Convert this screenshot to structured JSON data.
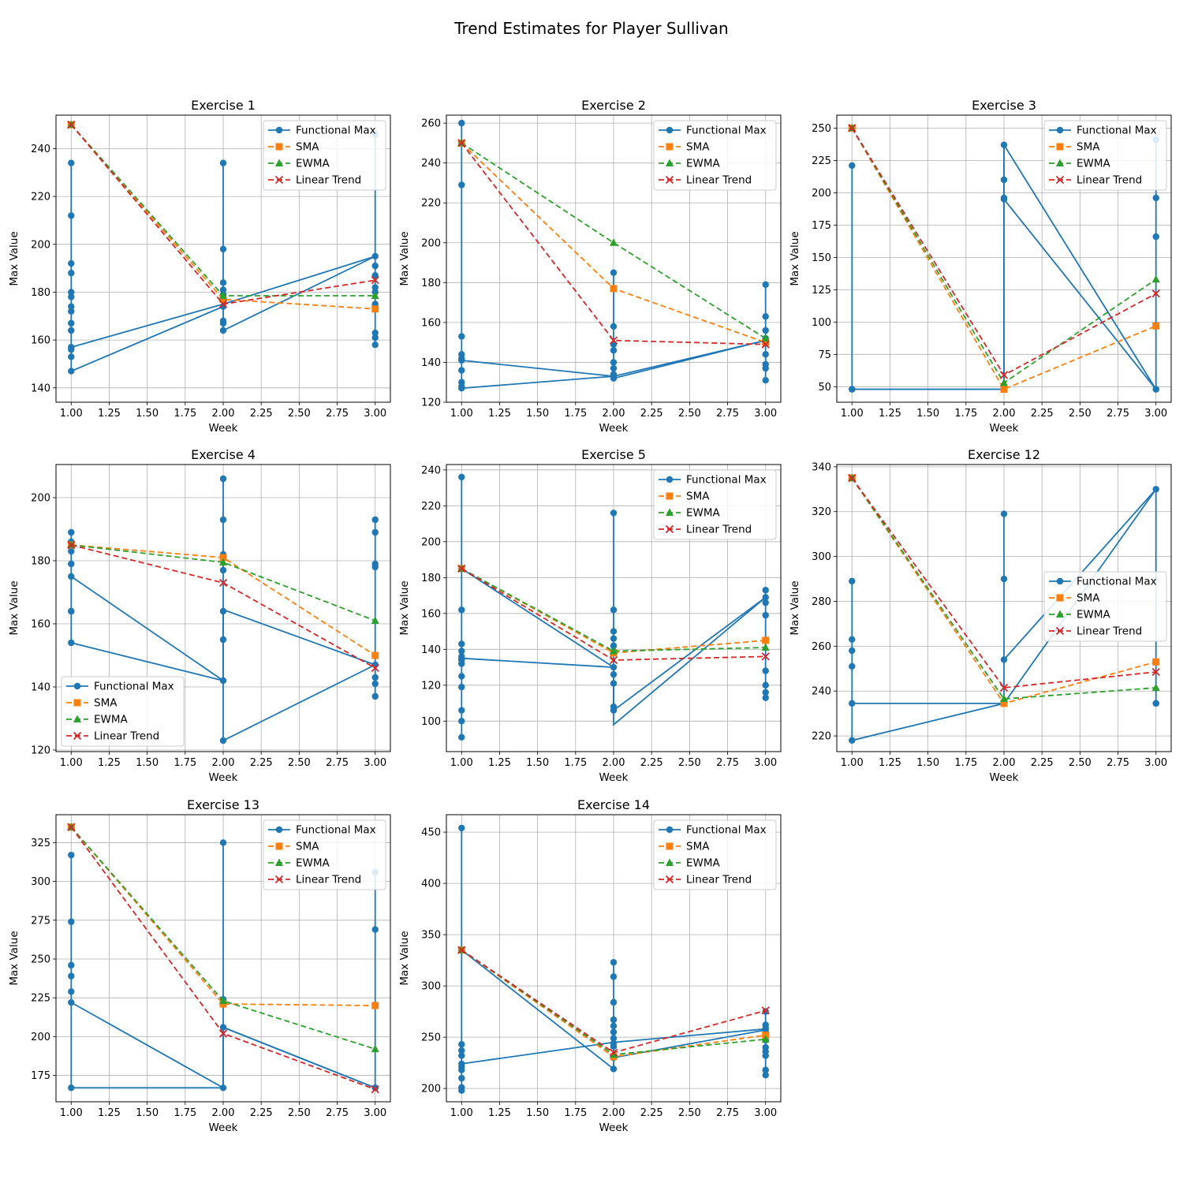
{
  "figure_title": "Trend Estimates for Player Sullivan",
  "colors": {
    "functional": "#1f77b4",
    "sma": "#ff7f0e",
    "ewma": "#2ca02c",
    "linear": "#d62728"
  },
  "legend_labels": [
    "Functional Max",
    "SMA",
    "EWMA",
    "Linear Trend"
  ],
  "chart_data": [
    {
      "type": "line",
      "title": "Exercise 1",
      "xlabel": "Week",
      "ylabel": "Max Value",
      "xlim": [
        0.9,
        3.1
      ],
      "ylim": [
        134,
        254
      ],
      "yticks": [
        140,
        160,
        180,
        200,
        220,
        240
      ],
      "grid": true,
      "legend": "top-right",
      "functional_max": {
        "x": [
          1,
          1,
          1,
          1,
          1,
          1,
          1,
          1,
          1,
          1,
          1,
          1,
          1,
          1,
          2,
          2,
          2,
          2,
          2,
          2,
          2,
          2,
          2,
          3,
          3,
          3,
          3,
          3,
          3,
          3,
          3,
          3,
          3
        ],
        "y": [
          157,
          234,
          212,
          192,
          188,
          180,
          178,
          174,
          172,
          167,
          164,
          156,
          153,
          147,
          174,
          234,
          198,
          184,
          181,
          179,
          168,
          167,
          164,
          195,
          246,
          191,
          187,
          182,
          180,
          175,
          163,
          161,
          158
        ],
        "trend": {
          "x": [
            1,
            2,
            3
          ],
          "y": [
            157,
            175,
            195
          ]
        }
      },
      "series": [
        {
          "name": "SMA",
          "x": [
            1,
            2,
            3
          ],
          "values": [
            250,
            177,
            173
          ]
        },
        {
          "name": "EWMA",
          "x": [
            1,
            2,
            3
          ],
          "values": [
            250,
            178.5,
            178.5
          ]
        },
        {
          "name": "Linear Trend",
          "x": [
            1,
            2,
            3
          ],
          "values": [
            250,
            175,
            185
          ]
        }
      ]
    },
    {
      "type": "line",
      "title": "Exercise 2",
      "xlabel": "Week",
      "ylabel": "Max Value",
      "xlim": [
        0.9,
        3.1
      ],
      "ylim": [
        120,
        264
      ],
      "yticks": [
        120,
        140,
        160,
        180,
        200,
        220,
        240,
        260
      ],
      "grid": true,
      "legend": "top-right",
      "functional_max": {
        "x": [
          1,
          1,
          1,
          1,
          1,
          1,
          1,
          1,
          1,
          1,
          1,
          2,
          2,
          2,
          2,
          2,
          2,
          2,
          2,
          2,
          3,
          3,
          3,
          3,
          3,
          3,
          3,
          3,
          3
        ],
        "y": [
          141,
          260,
          250,
          229,
          153,
          144,
          142,
          136,
          130,
          128,
          127,
          133,
          185,
          158,
          149,
          146,
          140,
          137,
          134,
          132,
          151,
          179,
          163,
          156,
          152,
          144,
          139,
          137,
          131
        ],
        "trend": {
          "x": [
            1,
            2,
            3
          ],
          "y": [
            141,
            133,
            151
          ]
        }
      },
      "series": [
        {
          "name": "SMA",
          "x": [
            1,
            2,
            3
          ],
          "values": [
            250,
            177,
            150
          ]
        },
        {
          "name": "EWMA",
          "x": [
            1,
            2,
            3
          ],
          "values": [
            250,
            200,
            152
          ]
        },
        {
          "name": "Linear Trend",
          "x": [
            1,
            2,
            3
          ],
          "values": [
            250,
            151,
            149
          ]
        }
      ]
    },
    {
      "type": "line",
      "title": "Exercise 3",
      "xlabel": "Week",
      "ylabel": "Max Value",
      "xlim": [
        0.9,
        3.1
      ],
      "ylim": [
        38,
        260
      ],
      "yticks": [
        50,
        75,
        100,
        125,
        150,
        175,
        200,
        225,
        250
      ],
      "grid": true,
      "legend": "top-right",
      "functional_max": {
        "x": [
          1,
          1,
          1,
          2,
          2,
          2,
          2,
          2,
          3,
          3,
          3,
          3,
          3
        ],
        "y": [
          48,
          221,
          48,
          48,
          237,
          210,
          196,
          195,
          48,
          241,
          196,
          166,
          48
        ],
        "trend": {
          "x": [
            1,
            2,
            2,
            3
          ],
          "y": [
            48,
            48,
            237,
            48
          ]
        }
      },
      "series": [
        {
          "name": "SMA",
          "x": [
            1,
            2,
            3
          ],
          "values": [
            250,
            48,
            97
          ]
        },
        {
          "name": "EWMA",
          "x": [
            1,
            2,
            3
          ],
          "values": [
            250,
            53,
            133
          ]
        },
        {
          "name": "Linear Trend",
          "x": [
            1,
            2,
            3
          ],
          "values": [
            250,
            59,
            122
          ]
        }
      ]
    },
    {
      "type": "line",
      "title": "Exercise 4",
      "xlabel": "Week",
      "ylabel": "Max Value",
      "xlim": [
        0.9,
        3.1
      ],
      "ylim": [
        119.5,
        210.5
      ],
      "yticks": [
        120,
        140,
        160,
        180,
        200
      ],
      "grid": true,
      "legend": "bottom-left",
      "functional_max": {
        "x": [
          1,
          1,
          1,
          1,
          1,
          1,
          1,
          1,
          2,
          2,
          2,
          2,
          2,
          2,
          2,
          2,
          3,
          3,
          3,
          3,
          3,
          3,
          3,
          3,
          3
        ],
        "y": [
          175,
          189,
          186,
          183,
          179,
          164,
          164,
          154,
          142,
          206,
          193,
          182,
          177,
          164,
          155,
          123,
          147,
          193,
          189,
          179,
          178,
          150,
          143,
          141,
          137
        ],
        "trend": {
          "x": [
            1,
            2,
            2,
            3
          ],
          "y": [
            175,
            142,
            164.5,
            147
          ]
        }
      },
      "series": [
        {
          "name": "SMA",
          "x": [
            1,
            2,
            3
          ],
          "values": [
            185,
            181,
            150
          ]
        },
        {
          "name": "EWMA",
          "x": [
            1,
            2,
            3
          ],
          "values": [
            185,
            179.5,
            161
          ]
        },
        {
          "name": "Linear Trend",
          "x": [
            1,
            2,
            3
          ],
          "values": [
            185,
            173,
            146
          ]
        }
      ]
    },
    {
      "type": "line",
      "title": "Exercise 5",
      "xlabel": "Week",
      "ylabel": "Max Value",
      "xlim": [
        0.9,
        3.1
      ],
      "ylim": [
        83,
        243
      ],
      "yticks": [
        100,
        120,
        140,
        160,
        180,
        200,
        220,
        240
      ],
      "grid": true,
      "legend": "top-right",
      "functional_max": {
        "x": [
          1,
          1,
          1,
          1,
          1,
          1,
          1,
          1,
          1,
          1,
          1,
          1,
          1,
          1,
          2,
          2,
          2,
          2,
          2,
          2,
          2,
          2,
          2,
          2,
          2,
          3,
          3,
          3,
          3,
          3,
          3,
          3,
          3
        ],
        "y": [
          135,
          236,
          162,
          143,
          139,
          136,
          134,
          132,
          125,
          119,
          106,
          100,
          91,
          185,
          130,
          216,
          162,
          150,
          146,
          142,
          139,
          126,
          121,
          108,
          106,
          169,
          173,
          166,
          159,
          128,
          120,
          116,
          113
        ],
        "trend": {
          "x": [
            1,
            2,
            2,
            3
          ],
          "y": [
            135,
            130,
            98,
            169
          ]
        }
      },
      "series": [
        {
          "name": "SMA",
          "x": [
            1,
            2,
            3
          ],
          "values": [
            185,
            138,
            145
          ]
        },
        {
          "name": "EWMA",
          "x": [
            1,
            2,
            3
          ],
          "values": [
            185,
            139,
            141
          ]
        },
        {
          "name": "Linear Trend",
          "x": [
            1,
            2,
            3
          ],
          "values": [
            185,
            134,
            136
          ]
        }
      ]
    },
    {
      "type": "line",
      "title": "Exercise 12",
      "xlabel": "Week",
      "ylabel": "Max Value",
      "xlim": [
        0.9,
        3.1
      ],
      "ylim": [
        213,
        341
      ],
      "yticks": [
        220,
        240,
        260,
        280,
        300,
        320,
        340
      ],
      "grid": true,
      "legend": "center-right",
      "functional_max": {
        "x": [
          1,
          1,
          1,
          1,
          1,
          1,
          2,
          2,
          2,
          2,
          3,
          3,
          3
        ],
        "y": [
          234.5,
          289,
          263,
          258,
          251,
          218,
          234.5,
          319,
          290,
          254,
          330,
          234.5,
          234.5
        ],
        "trend": {
          "x": [
            1,
            2,
            3
          ],
          "y": [
            234.5,
            234.5,
            330
          ]
        }
      },
      "series": [
        {
          "name": "SMA",
          "x": [
            1,
            2,
            3
          ],
          "values": [
            335,
            234.5,
            253
          ]
        },
        {
          "name": "EWMA",
          "x": [
            1,
            2,
            3
          ],
          "values": [
            335,
            236.5,
            241.5
          ]
        },
        {
          "name": "Linear Trend",
          "x": [
            1,
            2,
            3
          ],
          "values": [
            335,
            241.5,
            248.5
          ]
        }
      ]
    },
    {
      "type": "line",
      "title": "Exercise 13",
      "xlabel": "Week",
      "ylabel": "Max Value",
      "xlim": [
        0.9,
        3.1
      ],
      "ylim": [
        158,
        343
      ],
      "yticks": [
        175,
        200,
        225,
        250,
        275,
        300,
        325
      ],
      "grid": true,
      "legend": "top-right",
      "functional_max": {
        "x": [
          1,
          1,
          1,
          1,
          1,
          1,
          1,
          2,
          2,
          2,
          2,
          3,
          3,
          3,
          3
        ],
        "y": [
          167,
          317,
          274,
          246,
          239,
          229,
          222,
          167,
          325,
          224,
          206,
          167,
          306,
          269,
          167
        ],
        "trend": {
          "x": [
            1,
            2,
            2,
            3
          ],
          "y": [
            167,
            167,
            206,
            167
          ]
        }
      },
      "series": [
        {
          "name": "SMA",
          "x": [
            1,
            2,
            3
          ],
          "values": [
            335,
            221,
            220
          ]
        },
        {
          "name": "EWMA",
          "x": [
            1,
            2,
            3
          ],
          "values": [
            335,
            223,
            192
          ]
        },
        {
          "name": "Linear Trend",
          "x": [
            1,
            2,
            3
          ],
          "values": [
            335,
            202,
            166
          ]
        }
      ]
    },
    {
      "type": "line",
      "title": "Exercise 14",
      "xlabel": "Week",
      "ylabel": "Max Value",
      "xlim": [
        0.9,
        3.1
      ],
      "ylim": [
        187,
        467
      ],
      "yticks": [
        200,
        250,
        300,
        350,
        400,
        450
      ],
      "grid": true,
      "legend": "top-right",
      "functional_max": {
        "x": [
          1,
          1,
          1,
          1,
          1,
          1,
          1,
          1,
          1,
          1,
          1,
          2,
          2,
          2,
          2,
          2,
          2,
          2,
          2,
          2,
          2,
          2,
          3,
          3,
          3,
          3,
          3,
          3,
          3,
          3,
          3,
          3
        ],
        "y": [
          224,
          454,
          243,
          237,
          232,
          221,
          218,
          210,
          201,
          198,
          335,
          219,
          323,
          309,
          284,
          267,
          261,
          255,
          249,
          244,
          241,
          230,
          257,
          275,
          262,
          259,
          247,
          240,
          236,
          232,
          218,
          213
        ],
        "trend": {
          "x": [
            1,
            2,
            3
          ],
          "y": [
            224,
            245,
            258
          ]
        }
      },
      "series": [
        {
          "name": "SMA",
          "x": [
            1,
            2,
            3
          ],
          "values": [
            335,
            231,
            252
          ]
        },
        {
          "name": "EWMA",
          "x": [
            1,
            2,
            3
          ],
          "values": [
            335,
            233,
            248
          ]
        },
        {
          "name": "Linear Trend",
          "x": [
            1,
            2,
            3
          ],
          "values": [
            335,
            235,
            276
          ]
        }
      ]
    }
  ]
}
